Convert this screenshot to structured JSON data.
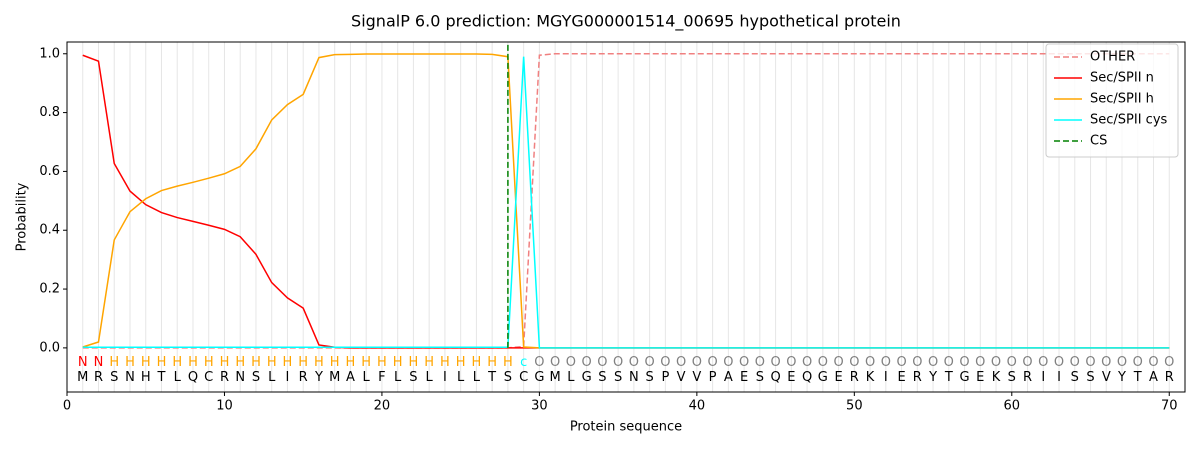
{
  "chart_data": {
    "type": "line",
    "title": "SignalP 6.0 prediction: MGYG000001514_00695 hypothetical protein",
    "xlabel": "Protein sequence",
    "ylabel": "Probability",
    "x": [
      1,
      2,
      3,
      4,
      5,
      6,
      7,
      8,
      9,
      10,
      11,
      12,
      13,
      14,
      15,
      16,
      17,
      18,
      19,
      20,
      21,
      22,
      23,
      24,
      25,
      26,
      27,
      28,
      29,
      30,
      31,
      32,
      33,
      34,
      35,
      36,
      37,
      38,
      39,
      40,
      41,
      42,
      43,
      44,
      45,
      46,
      47,
      48,
      49,
      50,
      51,
      52,
      53,
      54,
      55,
      56,
      57,
      58,
      59,
      60,
      61,
      62,
      63,
      64,
      65,
      66,
      67,
      68,
      69,
      70
    ],
    "sequence": [
      "M",
      "R",
      "S",
      "N",
      "H",
      "T",
      "L",
      "Q",
      "C",
      "R",
      "N",
      "S",
      "L",
      "I",
      "R",
      "Y",
      "M",
      "A",
      "L",
      "F",
      "L",
      "S",
      "L",
      "I",
      "L",
      "L",
      "T",
      "S",
      "C",
      "G",
      "M",
      "L",
      "G",
      "S",
      "S",
      "N",
      "S",
      "P",
      "V",
      "V",
      "P",
      "A",
      "E",
      "S",
      "Q",
      "E",
      "Q",
      "G",
      "E",
      "R",
      "K",
      "I",
      "E",
      "R",
      "Y",
      "T",
      "G",
      "E",
      "K",
      "S",
      "R",
      "I",
      "I",
      "S",
      "S",
      "V",
      "Y",
      "T",
      "A",
      "R"
    ],
    "region_labels": [
      "N",
      "N",
      "H",
      "H",
      "H",
      "H",
      "H",
      "H",
      "H",
      "H",
      "H",
      "H",
      "H",
      "H",
      "H",
      "H",
      "H",
      "H",
      "H",
      "H",
      "H",
      "H",
      "H",
      "H",
      "H",
      "H",
      "H",
      "H",
      "c",
      "O",
      "O",
      "O",
      "O",
      "O",
      "O",
      "O",
      "O",
      "O",
      "O",
      "O",
      "O",
      "O",
      "O",
      "O",
      "O",
      "O",
      "O",
      "O",
      "O",
      "O",
      "O",
      "O",
      "O",
      "O",
      "O",
      "O",
      "O",
      "O",
      "O",
      "O",
      "O",
      "O",
      "O",
      "O",
      "O",
      "O",
      "O",
      "O",
      "O",
      "O"
    ],
    "region_colors": {
      "N": "#ff0000",
      "H": "#ffa500",
      "c": "#00ffff",
      "O": "#808080"
    },
    "series": [
      {
        "name": "OTHER",
        "color": "#f08080",
        "dashed": true,
        "values": [
          0,
          0,
          0,
          0,
          0,
          0,
          0,
          0,
          0,
          0,
          0,
          0,
          0,
          0,
          0,
          0,
          0,
          0,
          0,
          0,
          0,
          0,
          0,
          0,
          0,
          0,
          0,
          0,
          0.005,
          0.995,
          1,
          1,
          1,
          1,
          1,
          1,
          1,
          1,
          1,
          1,
          1,
          1,
          1,
          1,
          1,
          1,
          1,
          1,
          1,
          1,
          1,
          1,
          1,
          1,
          1,
          1,
          1,
          1,
          1,
          1,
          1,
          1,
          1,
          1,
          1,
          1,
          1,
          1,
          1,
          1
        ]
      },
      {
        "name": "Sec/SPII n",
        "color": "#ff0000",
        "values": [
          0.995,
          0.975,
          0.627,
          0.533,
          0.487,
          0.46,
          0.443,
          0.43,
          0.417,
          0.403,
          0.378,
          0.318,
          0.222,
          0.17,
          0.135,
          0.01,
          0.002,
          0,
          0,
          0,
          0,
          0,
          0,
          0,
          0,
          0,
          0,
          0,
          0,
          0,
          0,
          0,
          0,
          0,
          0,
          0,
          0,
          0,
          0,
          0,
          0,
          0,
          0,
          0,
          0,
          0,
          0,
          0,
          0,
          0,
          0,
          0,
          0,
          0,
          0,
          0,
          0,
          0,
          0,
          0,
          0,
          0,
          0,
          0,
          0,
          0,
          0,
          0,
          0,
          0
        ]
      },
      {
        "name": "Sec/SPII h",
        "color": "#ffa500",
        "values": [
          0.003,
          0.02,
          0.367,
          0.463,
          0.507,
          0.535,
          0.55,
          0.563,
          0.577,
          0.592,
          0.617,
          0.677,
          0.775,
          0.827,
          0.862,
          0.987,
          0.997,
          0.998,
          0.999,
          0.999,
          0.999,
          0.999,
          0.999,
          0.999,
          0.999,
          0.999,
          0.998,
          0.99,
          0.003,
          0,
          0,
          0,
          0,
          0,
          0,
          0,
          0,
          0,
          0,
          0,
          0,
          0,
          0,
          0,
          0,
          0,
          0,
          0,
          0,
          0,
          0,
          0,
          0,
          0,
          0,
          0,
          0,
          0,
          0,
          0,
          0,
          0,
          0,
          0,
          0,
          0,
          0,
          0,
          0,
          0
        ]
      },
      {
        "name": "Sec/SPII cys",
        "color": "#00ffff",
        "values": [
          0.002,
          0.002,
          0.002,
          0.002,
          0.002,
          0.002,
          0.002,
          0.002,
          0.002,
          0.002,
          0.002,
          0.002,
          0.002,
          0.002,
          0.002,
          0.002,
          0.002,
          0.002,
          0.002,
          0.002,
          0.002,
          0.002,
          0.002,
          0.002,
          0.002,
          0.002,
          0.002,
          0.002,
          0.99,
          0,
          0,
          0,
          0,
          0,
          0,
          0,
          0,
          0,
          0,
          0,
          0,
          0,
          0,
          0,
          0,
          0,
          0,
          0,
          0,
          0,
          0,
          0,
          0,
          0,
          0,
          0,
          0,
          0,
          0,
          0,
          0,
          0,
          0,
          0,
          0,
          0,
          0,
          0,
          0,
          0
        ]
      }
    ],
    "cs": {
      "name": "CS",
      "x": 28,
      "color": "#008000"
    },
    "xlim": [
      0,
      71
    ],
    "ylim": [
      -0.15,
      1.04
    ],
    "xticks": [
      0,
      10,
      20,
      30,
      40,
      50,
      60,
      70
    ],
    "yticks": [
      {
        "value": 0,
        "label": "0.0"
      },
      {
        "value": 0.2,
        "label": "0.2"
      },
      {
        "value": 0.4,
        "label": "0.4"
      },
      {
        "value": 0.6,
        "label": "0.6"
      },
      {
        "value": 0.8,
        "label": "0.8"
      },
      {
        "value": 1,
        "label": "1.0"
      }
    ],
    "grid": true,
    "legend": "upper right"
  }
}
